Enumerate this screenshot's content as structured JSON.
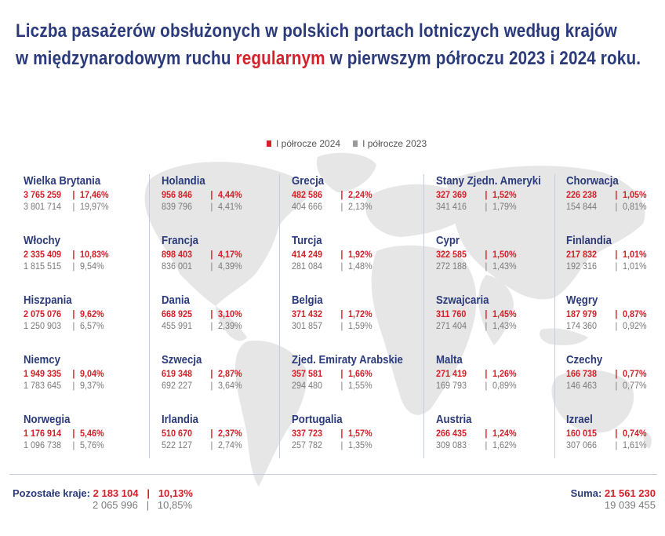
{
  "title": {
    "line1": "Liczba pasażerów obsłużonych w polskich portach lotniczych według krajów",
    "line2_before": "w międzynarodowym ruchu ",
    "line2_highlight": "regularnym",
    "line2_after": " w pierwszym półroczu 2023 i 2024 roku."
  },
  "colors": {
    "accent_2024": "#d4212a",
    "accent_2023": "#9a9a9a",
    "title": "#2b3a7a"
  },
  "legend": [
    {
      "label": "I półrocze 2024",
      "color": "#d4212a"
    },
    {
      "label": "I półrocze 2023",
      "color": "#9a9a9a"
    }
  ],
  "chart_data": {
    "type": "table",
    "series": [
      {
        "name": "I półrocze 2024"
      },
      {
        "name": "I półrocze 2023"
      }
    ],
    "columns": [
      [
        {
          "country": "Wielka Brytania",
          "v2024": "3 765 259",
          "p2024": "17,46%",
          "v2023": "3 801 714",
          "p2023": "19,97%"
        },
        {
          "country": "Włochy",
          "v2024": "2 335 409",
          "p2024": "10,83%",
          "v2023": "1 815 515",
          "p2023": "9,54%"
        },
        {
          "country": "Hiszpania",
          "v2024": "2 075 076",
          "p2024": "9,62%",
          "v2023": "1 250 903",
          "p2023": "6,57%"
        },
        {
          "country": "Niemcy",
          "v2024": "1 949 335",
          "p2024": "9,04%",
          "v2023": "1 783 645",
          "p2023": "9,37%"
        },
        {
          "country": "Norwegia",
          "v2024": "1 176 914",
          "p2024": "5,46%",
          "v2023": "1 096 738",
          "p2023": "5,76%"
        }
      ],
      [
        {
          "country": "Holandia",
          "v2024": "956 846",
          "p2024": "4,44%",
          "v2023": "839 796",
          "p2023": "4,41%"
        },
        {
          "country": "Francja",
          "v2024": "898 403",
          "p2024": "4,17%",
          "v2023": "836 001",
          "p2023": "4,39%"
        },
        {
          "country": "Dania",
          "v2024": "668 925",
          "p2024": "3,10%",
          "v2023": "455 991",
          "p2023": "2,39%"
        },
        {
          "country": "Szwecja",
          "v2024": "619 348",
          "p2024": "2,87%",
          "v2023": "692 227",
          "p2023": "3,64%"
        },
        {
          "country": "Irlandia",
          "v2024": "510 670",
          "p2024": "2,37%",
          "v2023": "522 127",
          "p2023": "2,74%"
        }
      ],
      [
        {
          "country": "Grecja",
          "v2024": "482 586",
          "p2024": "2,24%",
          "v2023": "404 666",
          "p2023": "2,13%"
        },
        {
          "country": "Turcja",
          "v2024": "414 249",
          "p2024": "1,92%",
          "v2023": "281 084",
          "p2023": "1,48%"
        },
        {
          "country": "Belgia",
          "v2024": "371 432",
          "p2024": "1,72%",
          "v2023": "301 857",
          "p2023": "1,59%"
        },
        {
          "country": "Zjed. Emiraty Arabskie",
          "v2024": "357 581",
          "p2024": "1,66%",
          "v2023": "294 480",
          "p2023": "1,55%"
        },
        {
          "country": "Portugalia",
          "v2024": "337 723",
          "p2024": "1,57%",
          "v2023": "257 782",
          "p2023": "1,35%"
        }
      ],
      [
        {
          "country": "Stany Zjedn. Ameryki",
          "v2024": "327 369",
          "p2024": "1,52%",
          "v2023": "341 416",
          "p2023": "1,79%"
        },
        {
          "country": "Cypr",
          "v2024": "322 585",
          "p2024": "1,50%",
          "v2023": "272 188",
          "p2023": "1,43%"
        },
        {
          "country": "Szwajcaria",
          "v2024": "311 760",
          "p2024": "1,45%",
          "v2023": "271 404",
          "p2023": "1,43%"
        },
        {
          "country": "Malta",
          "v2024": "271 419",
          "p2024": "1,26%",
          "v2023": "169 793",
          "p2023": "0,89%"
        },
        {
          "country": "Austria",
          "v2024": "266 435",
          "p2024": "1,24%",
          "v2023": "309 083",
          "p2023": "1,62%"
        }
      ],
      [
        {
          "country": "Chorwacja",
          "v2024": "226 238",
          "p2024": "1,05%",
          "v2023": "154 844",
          "p2023": "0,81%"
        },
        {
          "country": "Finlandia",
          "v2024": "217 832",
          "p2024": "1,01%",
          "v2023": "192 316",
          "p2023": "1,01%"
        },
        {
          "country": "Węgry",
          "v2024": "187 979",
          "p2024": "0,87%",
          "v2023": "174 360",
          "p2023": "0,92%"
        },
        {
          "country": "Czechy",
          "v2024": "166 738",
          "p2024": "0,77%",
          "v2023": "146 463",
          "p2023": "0,77%"
        },
        {
          "country": "Izrael",
          "v2024": "160 015",
          "p2024": "0,74%",
          "v2023": "307 066",
          "p2023": "1,61%"
        }
      ]
    ],
    "others": {
      "label": "Pozostałe kraje:",
      "v2024": "2 183 104",
      "p2024": "10,13%",
      "v2023": "2 065 996",
      "p2023": "10,85%"
    },
    "total": {
      "label": "Suma:",
      "v2024": "21 561 230",
      "v2023": "19 039 455"
    }
  }
}
